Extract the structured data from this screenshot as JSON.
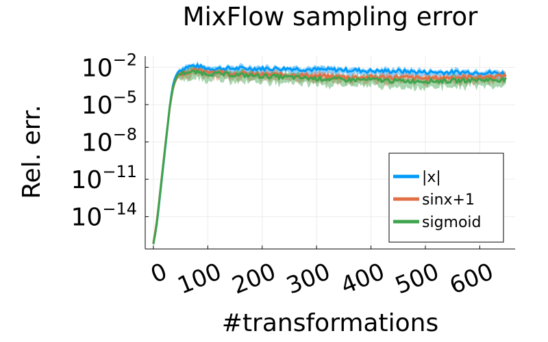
{
  "chart_data": {
    "type": "line",
    "title": "MixFlow sampling error",
    "xlabel": "#transformations",
    "ylabel": "Rel. err.",
    "y_scale": "log10",
    "xlim": [
      -15,
      665
    ],
    "ylim_log10": [
      -16.6,
      -1.1
    ],
    "x_ticks": [
      0,
      100,
      200,
      300,
      400,
      500,
      600
    ],
    "x_tick_labels": [
      "0",
      "100",
      "200",
      "300",
      "400",
      "500",
      "600"
    ],
    "y_ticks_log10": [
      -2,
      -5,
      -8,
      -11,
      -14
    ],
    "y_tick_labels": [
      {
        "base": "10",
        "exp": "−2"
      },
      {
        "base": "10",
        "exp": "−5"
      },
      {
        "base": "10",
        "exp": "−8"
      },
      {
        "base": "10",
        "exp": "−11"
      },
      {
        "base": "10",
        "exp": "−14"
      }
    ],
    "grid": true,
    "legend_position": "bottom-right",
    "x": [
      0,
      5,
      10,
      15,
      20,
      25,
      30,
      35,
      40,
      45,
      50,
      60,
      70,
      80,
      100,
      150,
      200,
      250,
      300,
      350,
      400,
      450,
      500,
      550,
      600,
      650
    ],
    "series": [
      {
        "name": "|x|",
        "color": "#009af9",
        "log10_values": [
          -16.2,
          -15.0,
          -13.2,
          -11.2,
          -9.2,
          -7.2,
          -5.2,
          -3.6,
          -2.8,
          -2.4,
          -2.2,
          -2.0,
          -1.9,
          -1.9,
          -2.1,
          -2.1,
          -2.1,
          -2.1,
          -2.2,
          -2.2,
          -2.3,
          -2.3,
          -2.4,
          -2.4,
          -2.4,
          -2.5
        ],
        "band": 0.5
      },
      {
        "name": "sinx+1",
        "color": "#e26f46",
        "log10_values": [
          -16.1,
          -14.8,
          -13.0,
          -11.0,
          -9.0,
          -7.1,
          -5.3,
          -3.9,
          -3.1,
          -2.7,
          -2.5,
          -2.4,
          -2.3,
          -2.3,
          -2.3,
          -2.5,
          -2.6,
          -2.6,
          -2.7,
          -2.8,
          -2.8,
          -2.8,
          -2.9,
          -2.8,
          -2.8,
          -2.7
        ],
        "band": 0.6
      },
      {
        "name": "sigmoid",
        "color": "#3da44d",
        "log10_values": [
          -16.2,
          -15.0,
          -13.1,
          -11.1,
          -9.1,
          -7.1,
          -5.2,
          -3.8,
          -3.0,
          -2.6,
          -2.5,
          -2.4,
          -2.4,
          -2.4,
          -2.5,
          -2.6,
          -2.7,
          -2.8,
          -2.9,
          -3.0,
          -3.0,
          -3.1,
          -3.1,
          -3.1,
          -3.0,
          -3.0
        ],
        "band": 0.7
      }
    ]
  }
}
